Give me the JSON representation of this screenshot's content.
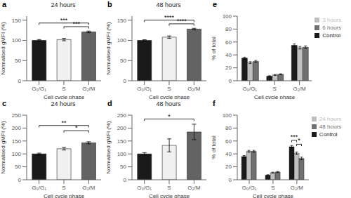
{
  "chart_data": [
    {
      "type": "bar",
      "title": "24 hours",
      "categories": [
        "G₀/G₁",
        "S",
        "G₂/M"
      ],
      "values": [
        100,
        102,
        121
      ],
      "errors": [
        2,
        3,
        2
      ],
      "colors": [
        "#1a1a1a",
        "#f0f0f0",
        "#636363"
      ],
      "xlabel": "Cell cycle phase",
      "ylabel": "Normalised gMFI (%)",
      "ylim": [
        0,
        160
      ],
      "yticks": [
        0,
        50,
        100,
        150
      ],
      "annotations": [
        {
          "text": "a"
        },
        {
          "text": "***",
          "x1": "G₀/G₁",
          "x2": "G₂/M",
          "y": 143
        },
        {
          "text": "***",
          "x1": "S",
          "x2": "G₂/M",
          "y": 134
        }
      ]
    },
    {
      "type": "bar",
      "title": "48 hours",
      "categories": [
        "G₀/G₁",
        "S",
        "G₂/M"
      ],
      "values": [
        100,
        108,
        128
      ],
      "errors": [
        1.5,
        3,
        2
      ],
      "colors": [
        "#1a1a1a",
        "#f0f0f0",
        "#636363"
      ],
      "xlabel": "Cell cycle phase",
      "ylabel": "Normalised gMFI (%)",
      "ylim": [
        0,
        160
      ],
      "yticks": [
        0,
        50,
        100,
        150
      ],
      "annotations": [
        {
          "text": "b"
        },
        {
          "text": "****",
          "x1": "G₀/G₁",
          "x2": "G₂/M",
          "y": 150
        },
        {
          "text": "****",
          "x1": "S",
          "x2": "G₂/M",
          "y": 141
        }
      ]
    },
    {
      "type": "bar",
      "categories": [
        "G₀/G₁",
        "S",
        "G₂/M"
      ],
      "series": [
        {
          "name": "Control",
          "color": "#1a1a1a",
          "values": [
            35,
            7,
            55
          ],
          "errors": [
            1.5,
            0.8,
            2.0
          ]
        },
        {
          "name": "3 hours",
          "color": "#c0c0c0",
          "values": [
            28,
            9,
            51
          ],
          "errors": [
            1.5,
            0.8,
            2.0
          ]
        },
        {
          "name": "6 hours",
          "color": "#707070",
          "values": [
            30,
            10,
            52
          ],
          "errors": [
            1.5,
            0.8,
            2.0
          ]
        }
      ],
      "xlabel": "Cell cycle phase",
      "ylabel": "% of total",
      "ylim": [
        0,
        100
      ],
      "yticks": [
        0,
        20,
        40,
        60,
        80,
        100
      ],
      "legend": "upper right",
      "annotations": [
        {
          "text": "e"
        }
      ]
    },
    {
      "type": "bar",
      "title": "24 hours",
      "categories": [
        "G₀/G₁",
        "S",
        "G₂/M"
      ],
      "values": [
        100,
        120,
        143
      ],
      "errors": [
        3,
        5,
        4
      ],
      "colors": [
        "#1a1a1a",
        "#f0f0f0",
        "#636363"
      ],
      "xlabel": "Cell cycle phase",
      "ylabel": "Normalised gMFI (%)",
      "ylim": [
        0,
        250
      ],
      "yticks": [
        0,
        50,
        100,
        150,
        200,
        250
      ],
      "annotations": [
        {
          "text": "c"
        },
        {
          "text": "**",
          "x1": "G₀/G₁",
          "x2": "G₂/M",
          "y": 210
        },
        {
          "text": "*",
          "x1": "S",
          "x2": "G₂/M",
          "y": 190
        }
      ]
    },
    {
      "type": "bar",
      "title": "48 hours",
      "categories": [
        "G₀/G₁",
        "S",
        "G₂/M"
      ],
      "values": [
        100,
        133,
        185
      ],
      "errors": [
        5,
        25,
        30
      ],
      "colors": [
        "#1a1a1a",
        "#f0f0f0",
        "#636363"
      ],
      "xlabel": "Cell cycle phase",
      "ylabel": "Normalised gMFI (%)",
      "ylim": [
        0,
        250
      ],
      "yticks": [
        0,
        50,
        100,
        150,
        200,
        250
      ],
      "annotations": [
        {
          "text": "d"
        },
        {
          "text": "*",
          "x1": "G₀/G₁",
          "x2": "G₂/M",
          "y": 235
        }
      ]
    },
    {
      "type": "bar",
      "categories": [
        "G₀/G₁",
        "S",
        "G₂/M"
      ],
      "series": [
        {
          "name": "Control",
          "color": "#1a1a1a",
          "values": [
            36,
            7,
            51
          ],
          "errors": [
            1.5,
            0.8,
            2.0
          ]
        },
        {
          "name": "24 hours",
          "color": "#c0c0c0",
          "values": [
            44,
            11,
            41
          ],
          "errors": [
            1.5,
            0.8,
            2.0
          ]
        },
        {
          "name": "48 hours",
          "color": "#707070",
          "values": [
            44,
            12,
            33
          ],
          "errors": [
            1.5,
            0.8,
            2.0
          ]
        }
      ],
      "xlabel": "Cell cycle phase",
      "ylabel": "% of total",
      "ylim": [
        0,
        100
      ],
      "yticks": [
        0,
        20,
        40,
        60,
        80,
        100
      ],
      "legend": "upper right",
      "annotations": [
        {
          "text": "f"
        },
        {
          "text": "***",
          "category": "G₂/M",
          "series1": "Control",
          "series2": "24 hours",
          "y": 61
        },
        {
          "text": "*",
          "category": "G₂/M",
          "series1": "24 hours",
          "series2": "48 hours",
          "y": 55
        }
      ]
    }
  ]
}
